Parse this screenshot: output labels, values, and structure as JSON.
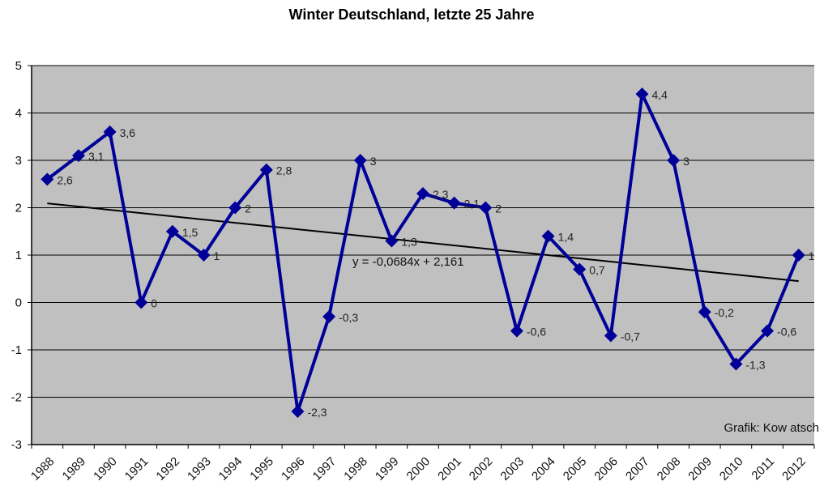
{
  "chart_data": {
    "type": "line",
    "title": "Winter Deutschland, letzte 25 Jahre",
    "xlabel": "",
    "ylabel": "",
    "categories": [
      "1988",
      "1989",
      "1990",
      "1991",
      "1992",
      "1993",
      "1994",
      "1995",
      "1996",
      "1997",
      "1998",
      "1999",
      "2000",
      "2001",
      "2002",
      "2003",
      "2004",
      "2005",
      "2006",
      "2007",
      "2008",
      "2009",
      "2010",
      "2011",
      "2012"
    ],
    "series": [
      {
        "name": "Winter",
        "color": "#000099",
        "values": [
          2.6,
          3.1,
          3.6,
          0,
          1.5,
          1,
          2,
          2.8,
          -2.3,
          -0.3,
          3,
          1.3,
          2.3,
          2.1,
          2,
          -0.6,
          1.4,
          0.7,
          -0.7,
          4.4,
          3,
          -0.2,
          -1.3,
          -0.6,
          1
        ],
        "labels": [
          "2,6",
          "3,1",
          "3,6",
          "0",
          "1,5",
          "1",
          "2",
          "2,8",
          "-2,3",
          "-0,3",
          "3",
          "1,3",
          "2,3",
          "2,1",
          "2",
          "-0,6",
          "1,4",
          "0,7",
          "-0,7",
          "4,4",
          "3",
          "-0,2",
          "-1,3",
          "-0,6",
          "1"
        ]
      }
    ],
    "trendline": {
      "slope": -0.0684,
      "intercept": 2.161,
      "equation": "y = -0,0684x + 2,161",
      "color": "#000000"
    },
    "ylim": [
      -3,
      5
    ],
    "yticks": [
      "-3",
      "-2",
      "-1",
      "0",
      "1",
      "2",
      "3",
      "4",
      "5"
    ],
    "grid": true,
    "plot_background": "#c0c0c0",
    "annotation": "Grafik: Kow atsch"
  }
}
